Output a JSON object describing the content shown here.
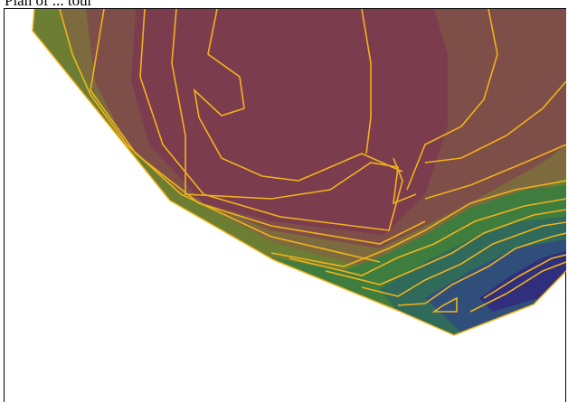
{
  "caption": "Plan of ... tour",
  "map": {
    "type": "contour-surface-plot",
    "contour_line_color": "#f2b21a",
    "fill_colors": {
      "high": "#7b3d4e",
      "upper": "#7e4f48",
      "middle": "#7d6a3e",
      "lower_middle": "#6b7e33",
      "low": "#3f7d3e",
      "lower": "#2f6a5a",
      "deep": "#2f4f7a",
      "deepest": "#2f2f7d"
    }
  }
}
